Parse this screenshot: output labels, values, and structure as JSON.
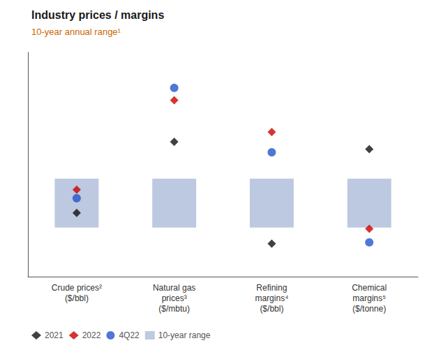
{
  "chart_data": {
    "type": "range",
    "title": "Industry prices / margins",
    "subtitle": "10-year annual range¹",
    "categories": [
      "Crude prices²\n($/bbl)",
      "Natural gas\nprices³\n($/mbtu)",
      "Refining\nmargins⁴\n($/bbl)",
      "Chemical\nmargins⁵\n($/tonne)"
    ],
    "series": [
      {
        "name": "2021",
        "type": "scatter",
        "marker": "diamond",
        "color": "#111111",
        "values": [
          0.06,
          1.22,
          -0.44,
          1.1
        ]
      },
      {
        "name": "2022",
        "type": "scatter",
        "marker": "diamond",
        "color": "#cc0000",
        "values": [
          0.44,
          1.9,
          1.38,
          -0.2
        ]
      },
      {
        "name": "4Q22",
        "type": "scatter",
        "marker": "circle",
        "color": "#2255cc",
        "values": [
          0.3,
          2.1,
          1.05,
          -0.42
        ]
      },
      {
        "name": "10-year range",
        "type": "range_bar",
        "color": "#bdc9e0",
        "low": [
          -0.18,
          -0.18,
          -0.18,
          -0.18
        ],
        "high": [
          0.62,
          0.62,
          0.62,
          0.62
        ]
      }
    ],
    "ylim": [
      -0.98,
      2.68
    ],
    "tick_labels": "x",
    "grid": false,
    "legend": "lower left"
  }
}
